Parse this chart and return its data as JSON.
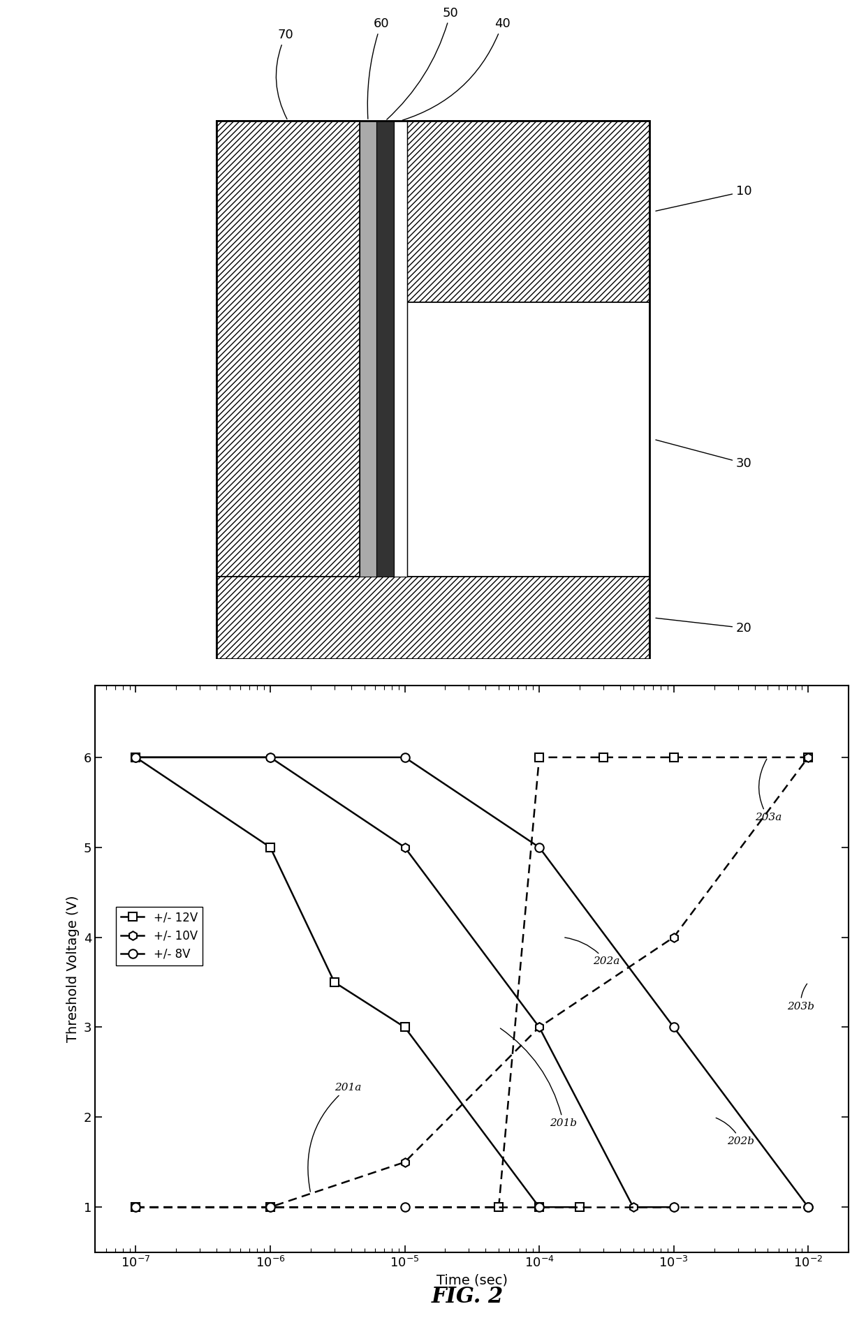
{
  "fig2": {
    "xlabel": "Time (sec)",
    "ylabel": "Threshold Voltage (V)",
    "yticks": [
      1.0,
      2.0,
      3.0,
      4.0,
      5.0,
      6.0
    ],
    "prog_12V_x": [
      1e-07,
      1e-06,
      3e-06,
      1e-05,
      0.0001,
      0.0002
    ],
    "prog_12V_y": [
      6.0,
      5.0,
      3.5,
      3.0,
      1.0,
      1.0
    ],
    "prog_10V_x": [
      1e-07,
      1e-06,
      1e-05,
      0.0001,
      0.0005,
      0.001
    ],
    "prog_10V_y": [
      6.0,
      6.0,
      5.0,
      3.0,
      1.0,
      1.0
    ],
    "prog_8V_x": [
      1e-07,
      1e-06,
      1e-05,
      0.0001,
      0.001,
      0.01
    ],
    "prog_8V_y": [
      6.0,
      6.0,
      6.0,
      5.0,
      3.0,
      1.0
    ],
    "erase_12V_x": [
      1e-07,
      1e-06,
      5e-05,
      0.0001,
      0.0003,
      0.001,
      0.01
    ],
    "erase_12V_y": [
      1.0,
      1.0,
      1.0,
      6.0,
      6.0,
      6.0,
      6.0
    ],
    "erase_10V_x": [
      1e-07,
      1e-06,
      1e-05,
      0.0001,
      0.001,
      0.01
    ],
    "erase_10V_y": [
      1.0,
      1.0,
      1.5,
      3.0,
      4.0,
      6.0
    ],
    "erase_8V_x": [
      1e-07,
      1e-06,
      1e-05,
      0.0001,
      0.001,
      0.01
    ],
    "erase_8V_y": [
      1.0,
      1.0,
      1.0,
      1.0,
      1.0,
      1.0
    ]
  }
}
